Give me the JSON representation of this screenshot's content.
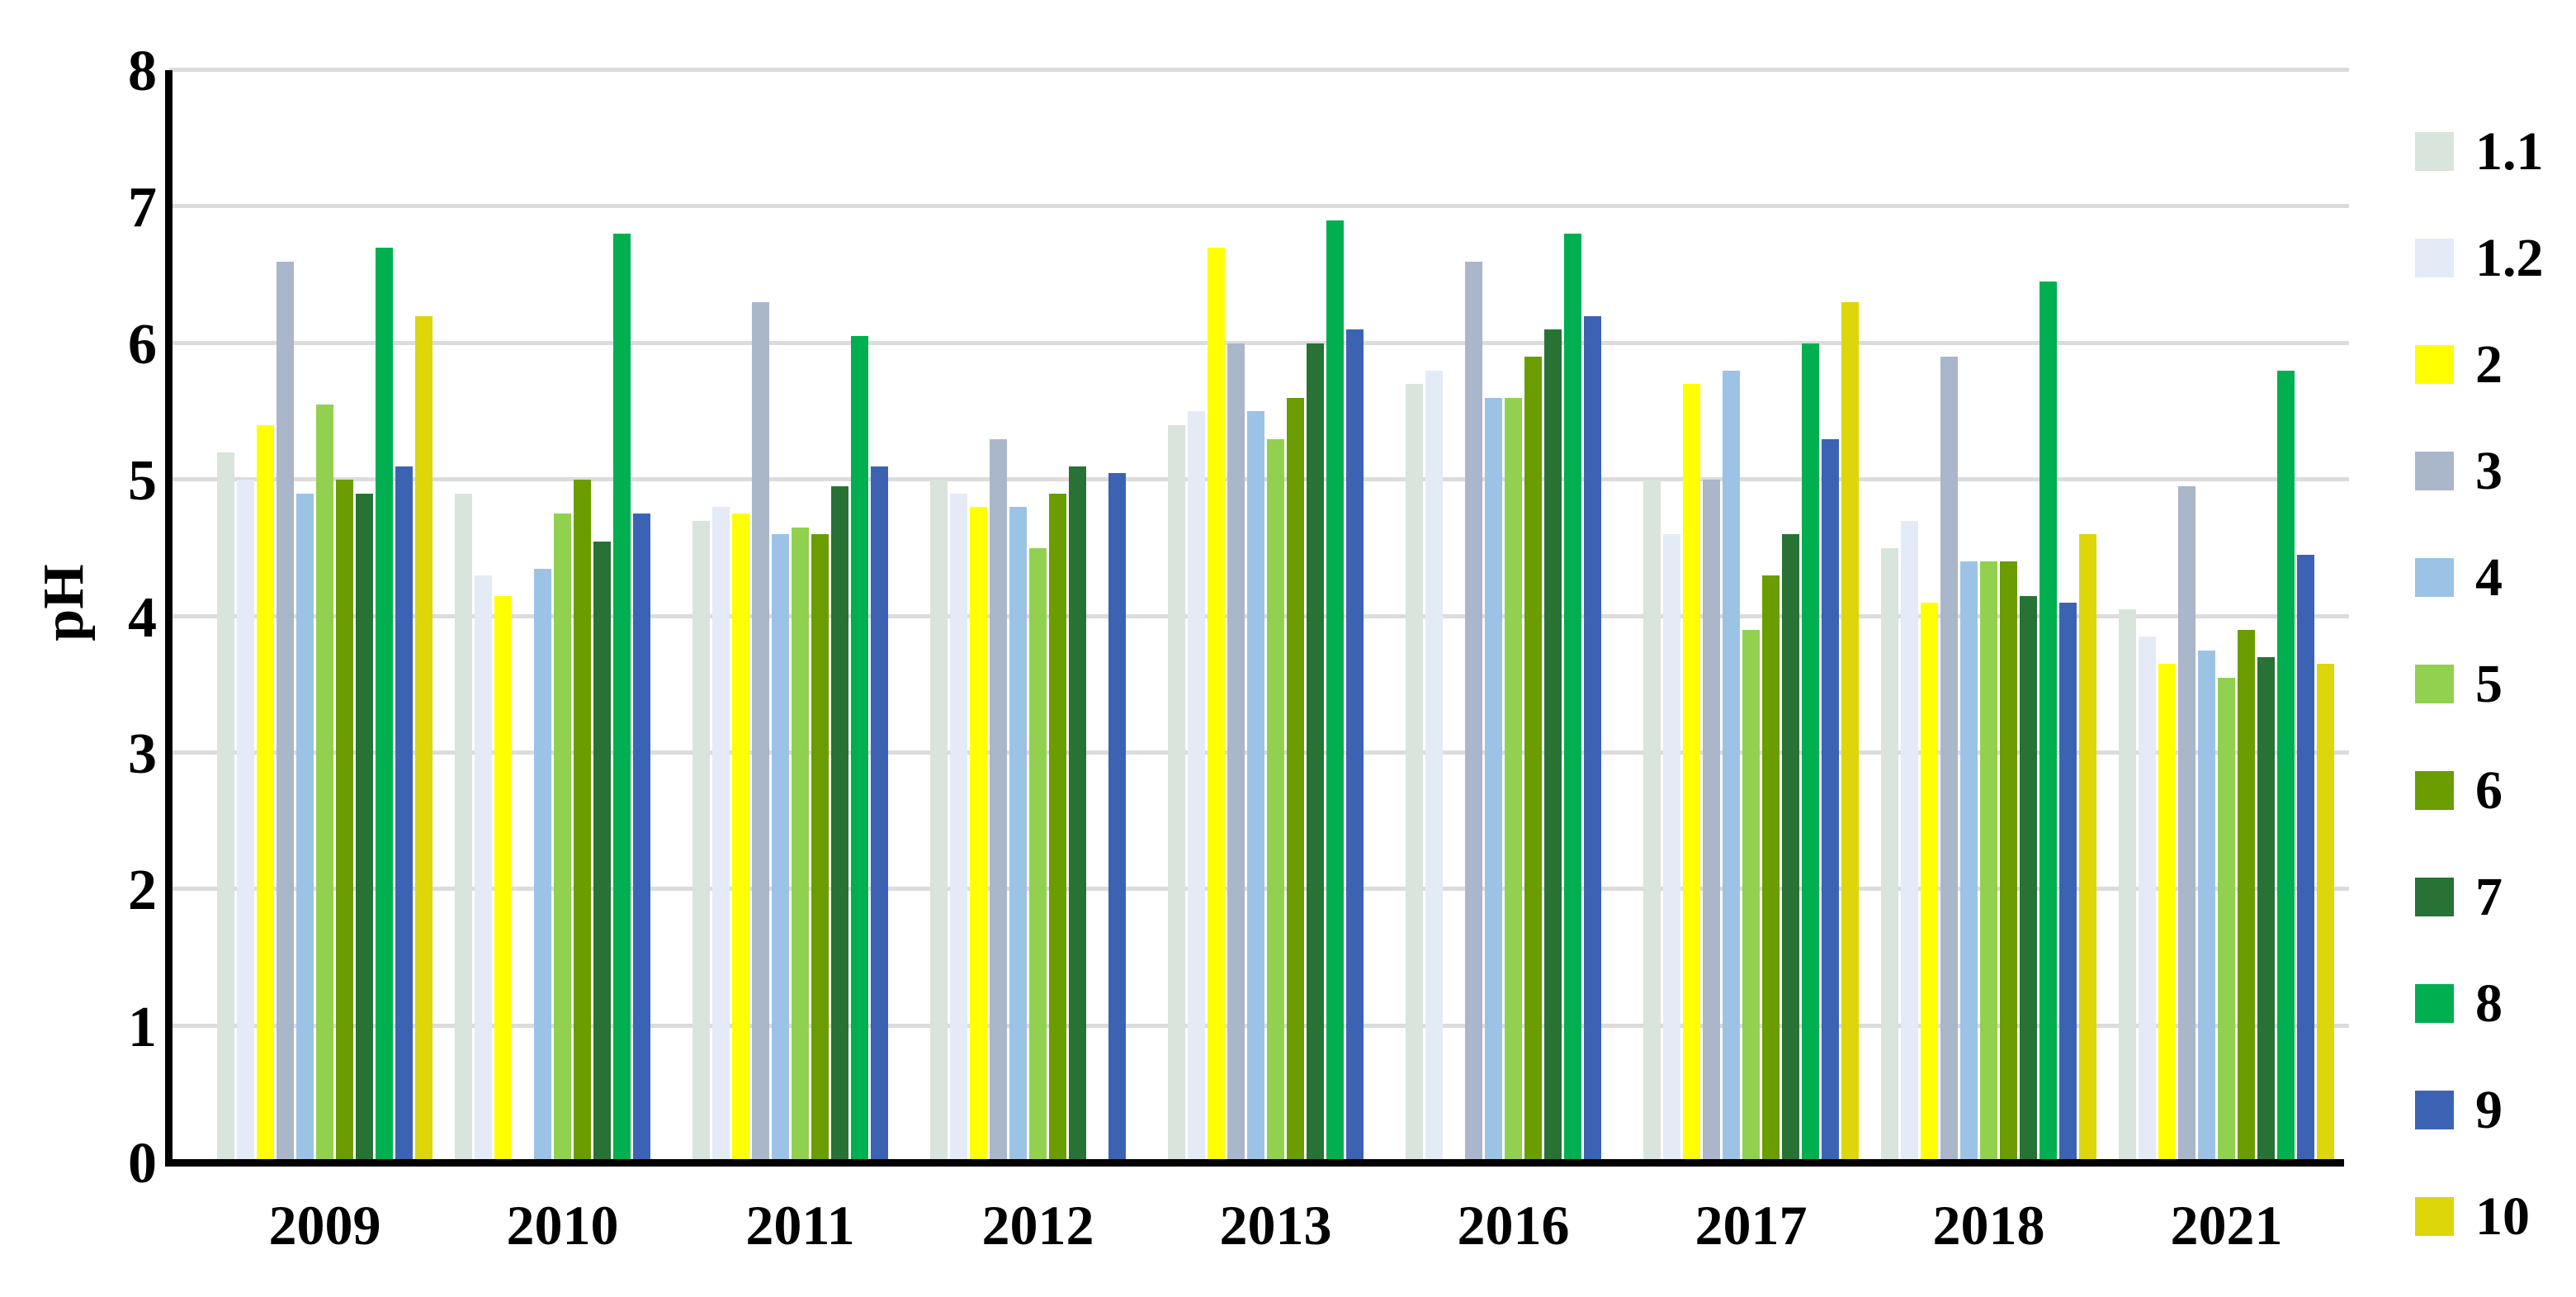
{
  "chart_data": {
    "type": "bar",
    "title": "",
    "xlabel": "",
    "ylabel": "pH",
    "ylim": [
      0,
      8
    ],
    "yticks": [
      0,
      1,
      2,
      3,
      4,
      5,
      6,
      7,
      8
    ],
    "grid": true,
    "legend_position": "right",
    "categories": [
      "2009",
      "2010",
      "2011",
      "2012",
      "2013",
      "2016",
      "2017",
      "2018",
      "2021"
    ],
    "series": [
      {
        "name": "1.1",
        "color": "#d8e4dc",
        "values": [
          5.2,
          4.9,
          4.7,
          5.0,
          5.4,
          5.7,
          5.0,
          4.5,
          4.05
        ]
      },
      {
        "name": "1.2",
        "color": "#e4ebf6",
        "values": [
          5.0,
          4.3,
          4.8,
          4.9,
          5.5,
          5.8,
          4.6,
          4.7,
          3.85
        ]
      },
      {
        "name": "2",
        "color": "#ffff00",
        "values": [
          5.4,
          4.15,
          4.75,
          4.8,
          6.7,
          null,
          5.7,
          4.1,
          3.65
        ]
      },
      {
        "name": "3",
        "color": "#aab6c9",
        "values": [
          6.6,
          null,
          6.3,
          5.3,
          6.0,
          6.6,
          5.0,
          5.9,
          4.95
        ]
      },
      {
        "name": "4",
        "color": "#9cc3e6",
        "values": [
          4.9,
          4.35,
          4.6,
          4.8,
          5.5,
          5.6,
          5.8,
          4.4,
          3.75
        ]
      },
      {
        "name": "5",
        "color": "#92d050",
        "values": [
          5.55,
          4.75,
          4.65,
          4.5,
          5.3,
          5.6,
          3.9,
          4.4,
          3.55
        ]
      },
      {
        "name": "6",
        "color": "#6b9c00",
        "values": [
          5.0,
          5.0,
          4.6,
          4.9,
          5.6,
          5.9,
          4.3,
          4.4,
          3.9
        ]
      },
      {
        "name": "7",
        "color": "#277234",
        "values": [
          4.9,
          4.55,
          4.95,
          5.1,
          6.0,
          6.1,
          4.6,
          4.15,
          3.7
        ]
      },
      {
        "name": "8",
        "color": "#00af50",
        "values": [
          6.7,
          6.8,
          6.05,
          null,
          6.9,
          6.8,
          6.0,
          6.45,
          5.8
        ]
      },
      {
        "name": "9",
        "color": "#3c63b3",
        "values": [
          5.1,
          4.75,
          5.1,
          5.05,
          6.1,
          6.2,
          5.3,
          4.1,
          4.45
        ]
      },
      {
        "name": "10",
        "color": "#ddd60a",
        "values": [
          6.2,
          null,
          null,
          null,
          null,
          null,
          6.3,
          4.6,
          3.65
        ]
      }
    ]
  }
}
